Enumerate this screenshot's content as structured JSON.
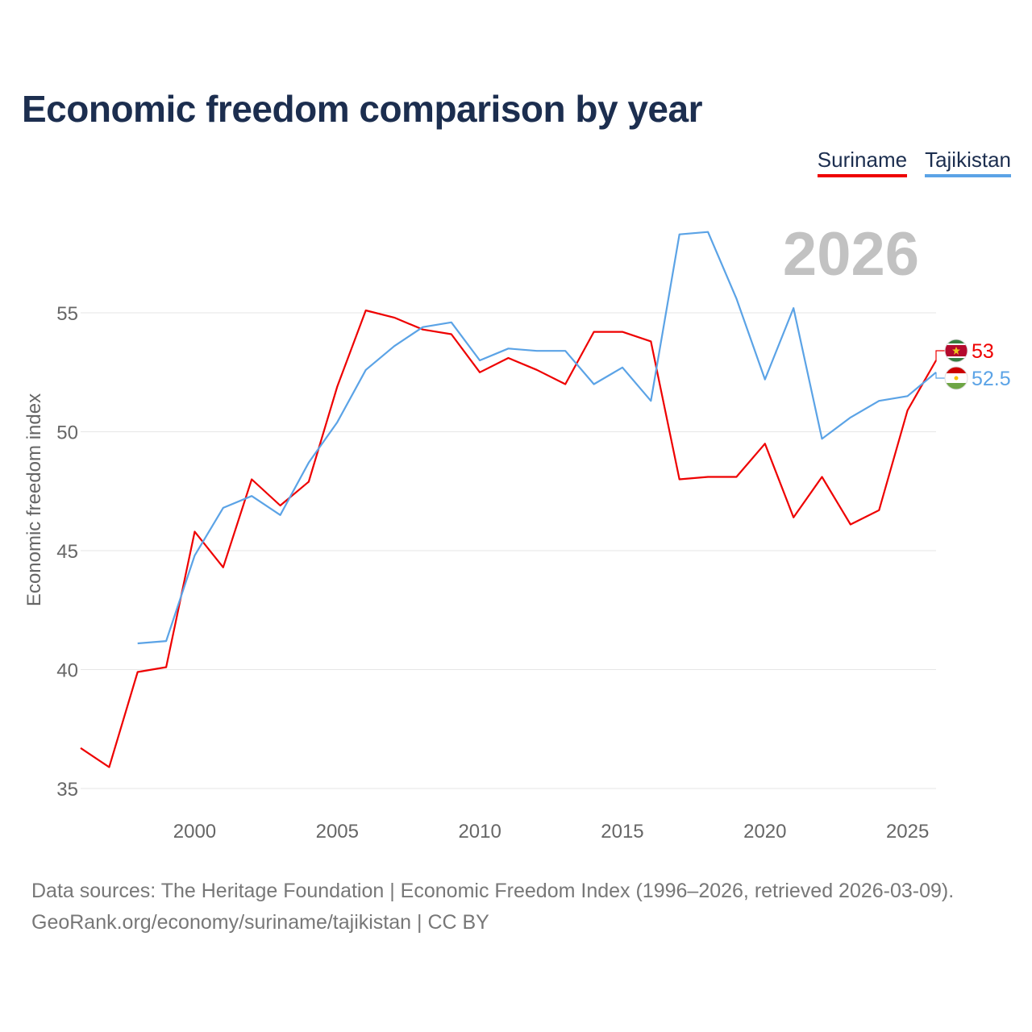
{
  "title": "Economic freedom comparison by year",
  "legend": [
    {
      "name": "Suriname",
      "color": "#ee0000"
    },
    {
      "name": "Tajikistan",
      "color": "#5ba3e6"
    }
  ],
  "year_label": "2026",
  "footer": {
    "line1": "Data sources: The Heritage Foundation | Economic Freedom Index (1996–2026, retrieved 2026-03-09).",
    "line2": "GeoRank.org/economy/suriname/tajikistan | CC BY"
  },
  "chart_data": {
    "type": "line",
    "title": "Economic freedom comparison by year",
    "xlabel": "",
    "ylabel": "Economic freedom index",
    "xlim": [
      1996,
      2026
    ],
    "ylim": [
      34,
      58
    ],
    "xticks": [
      2000,
      2005,
      2010,
      2015,
      2020,
      2025
    ],
    "yticks": [
      35,
      40,
      45,
      50,
      55
    ],
    "grid": true,
    "legend_position": "top-right",
    "series": [
      {
        "name": "Suriname",
        "color": "#ee0000",
        "end_label": "53",
        "flag_icon": "suriname-flag-icon",
        "x": [
          1996,
          1997,
          1998,
          1999,
          2000,
          2001,
          2002,
          2003,
          2004,
          2005,
          2006,
          2007,
          2008,
          2009,
          2010,
          2011,
          2012,
          2013,
          2014,
          2015,
          2016,
          2017,
          2018,
          2019,
          2020,
          2021,
          2022,
          2023,
          2024,
          2025,
          2026
        ],
        "y": [
          36.7,
          35.9,
          39.9,
          40.1,
          45.8,
          44.3,
          48.0,
          46.9,
          47.9,
          51.9,
          55.1,
          54.8,
          54.3,
          54.1,
          52.5,
          53.1,
          52.6,
          52.0,
          54.2,
          54.2,
          53.8,
          48.0,
          48.1,
          48.1,
          49.5,
          46.4,
          48.1,
          46.1,
          46.7,
          50.9,
          53.0
        ]
      },
      {
        "name": "Tajikistan",
        "color": "#5ba3e6",
        "end_label": "52.5",
        "flag_icon": "tajikistan-flag-icon",
        "x": [
          1998,
          1999,
          2000,
          2001,
          2002,
          2003,
          2004,
          2005,
          2006,
          2007,
          2008,
          2009,
          2010,
          2011,
          2012,
          2013,
          2014,
          2015,
          2016,
          2017,
          2018,
          2019,
          2020,
          2021,
          2022,
          2023,
          2024,
          2025,
          2026
        ],
        "y": [
          41.1,
          41.2,
          44.8,
          46.8,
          47.3,
          46.5,
          48.7,
          50.4,
          52.6,
          53.6,
          54.4,
          54.6,
          53.0,
          53.5,
          53.4,
          53.4,
          52.0,
          52.7,
          51.3,
          58.3,
          58.4,
          55.6,
          52.2,
          55.2,
          49.7,
          50.6,
          51.3,
          51.5,
          52.5
        ]
      }
    ]
  }
}
